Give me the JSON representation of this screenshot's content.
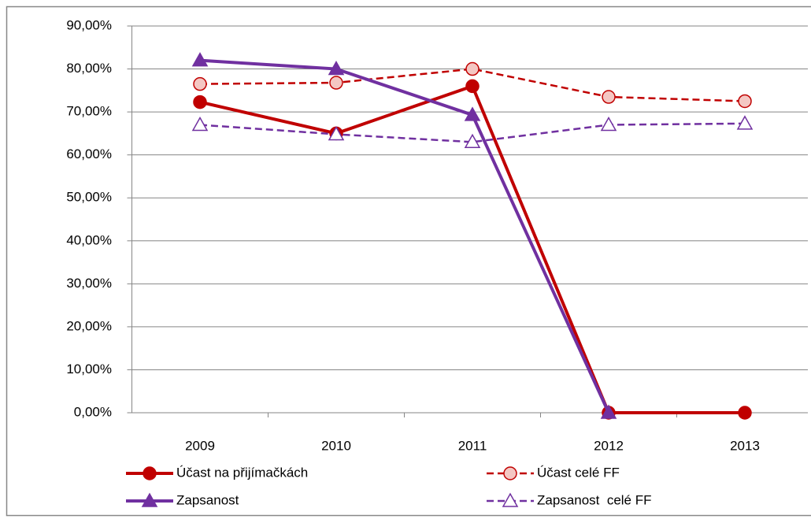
{
  "chart_data": {
    "type": "line",
    "categories": [
      "2009",
      "2010",
      "2011",
      "2012",
      "2013"
    ],
    "series": [
      {
        "name": "Účast na přijímačkách",
        "color": "#c00000",
        "line_style": "solid",
        "marker": "circle",
        "values": [
          72.3,
          65,
          76,
          0,
          0
        ]
      },
      {
        "name": "Účast celé FF",
        "color": "#c00000",
        "line_style": "dashed",
        "marker": "circle",
        "values": [
          76.5,
          76.8,
          80,
          73.5,
          72.5
        ]
      },
      {
        "name": "Zapsanost",
        "color": "#7030a0",
        "line_style": "solid",
        "marker": "triangle",
        "values": [
          82,
          80,
          69.3,
          0,
          null
        ]
      },
      {
        "name": "Zapsanost  celé FF",
        "color": "#7030a0",
        "line_style": "dashed",
        "marker": "triangle",
        "values": [
          67,
          64.8,
          63,
          67,
          67.3
        ]
      }
    ],
    "ylim": [
      0,
      90
    ],
    "yticks": [
      {
        "value": 0,
        "label": "0,00%"
      },
      {
        "value": 10,
        "label": "10,00%"
      },
      {
        "value": 20,
        "label": "20,00%"
      },
      {
        "value": 30,
        "label": "30,00%"
      },
      {
        "value": 40,
        "label": "40,00%"
      },
      {
        "value": 50,
        "label": "50,00%"
      },
      {
        "value": 60,
        "label": "60,00%"
      },
      {
        "value": 70,
        "label": "70,00%"
      },
      {
        "value": 80,
        "label": "80,00%"
      },
      {
        "value": 90,
        "label": "90,00%"
      }
    ],
    "grid": true,
    "legend": "bottom"
  }
}
